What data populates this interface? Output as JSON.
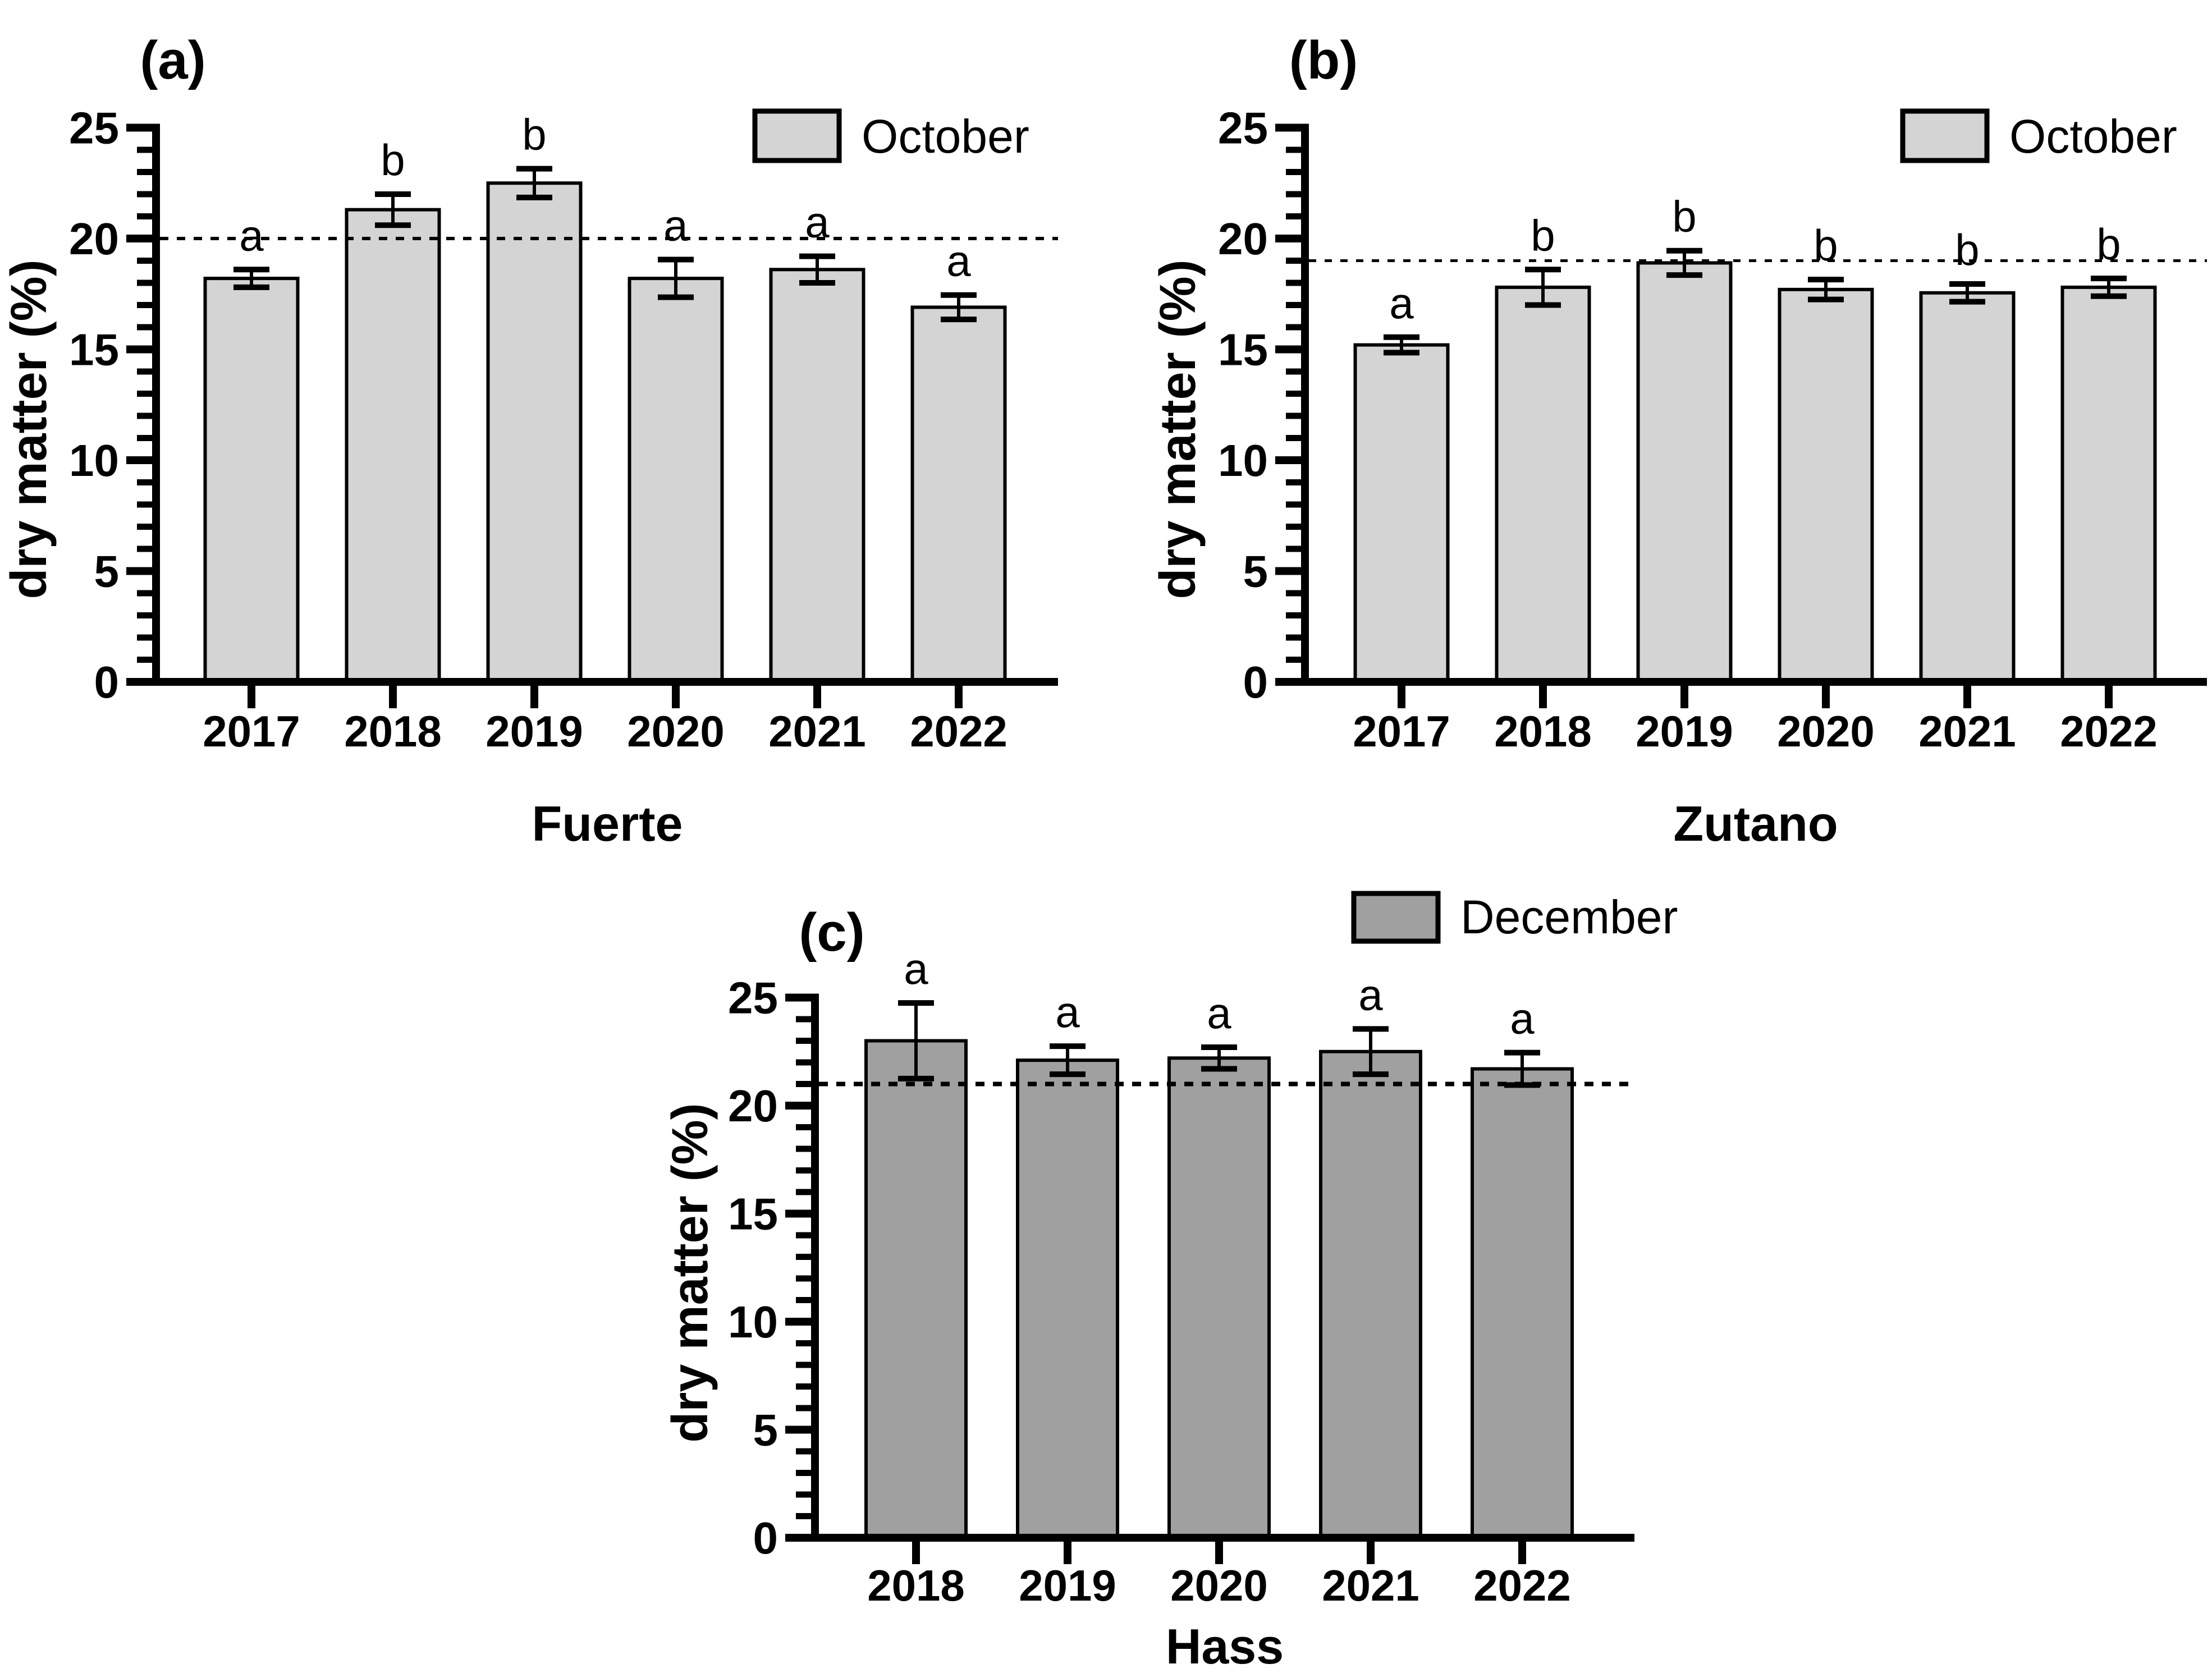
{
  "figure": {
    "background": "#ffffff",
    "axis_color": "#000000",
    "text_color": "#000000"
  },
  "colors": {
    "october_fill": "#d4d4d4",
    "december_fill": "#a0a0a0",
    "bar_stroke": "#000000",
    "dashed_line": "#000000"
  },
  "chart_data": [
    {
      "type": "bar",
      "panel_label": "(a)",
      "legend": {
        "label": "October",
        "fill": "#d4d4d4",
        "position": "top-right"
      },
      "title": "",
      "xlabel": "Fuerte",
      "ylabel": "dry matter (%)",
      "categories": [
        "2017",
        "2018",
        "2019",
        "2020",
        "2021",
        "2022"
      ],
      "values": [
        18.2,
        21.3,
        22.5,
        18.2,
        18.6,
        16.9
      ],
      "errors": [
        0.4,
        0.7,
        0.65,
        0.85,
        0.6,
        0.55
      ],
      "sig_letters": [
        "a",
        "b",
        "b",
        "a",
        "a",
        "a"
      ],
      "dashed_reference_line": 20,
      "ylim": [
        0,
        25
      ],
      "yticks": [
        0,
        5,
        10,
        15,
        20,
        25
      ],
      "minor_tick_step": 1,
      "grid": false
    },
    {
      "type": "bar",
      "panel_label": "(b)",
      "legend": {
        "label": "October",
        "fill": "#d4d4d4",
        "position": "top-right"
      },
      "title": "",
      "xlabel": "Zutano",
      "ylabel": "dry matter (%)",
      "categories": [
        "2017",
        "2018",
        "2019",
        "2020",
        "2021",
        "2022"
      ],
      "values": [
        15.2,
        17.8,
        18.9,
        17.7,
        17.55,
        17.8
      ],
      "errors": [
        0.35,
        0.8,
        0.55,
        0.45,
        0.4,
        0.4
      ],
      "sig_letters": [
        "a",
        "b",
        "b",
        "b",
        "b",
        "b"
      ],
      "dashed_reference_line": 19,
      "ylim": [
        0,
        25
      ],
      "yticks": [
        0,
        5,
        10,
        15,
        20,
        25
      ],
      "minor_tick_step": 1,
      "grid": false
    },
    {
      "type": "bar",
      "panel_label": "(c)",
      "legend": {
        "label": "December",
        "fill": "#a0a0a0",
        "position": "top-right"
      },
      "title": "",
      "xlabel": "Hass",
      "ylabel": "dry matter (%)",
      "categories": [
        "2018",
        "2019",
        "2020",
        "2021",
        "2022"
      ],
      "values": [
        23.0,
        22.1,
        22.2,
        22.5,
        21.7
      ],
      "errors": [
        1.75,
        0.65,
        0.5,
        1.05,
        0.75
      ],
      "sig_letters": [
        "a",
        "a",
        "a",
        "a",
        "a"
      ],
      "dashed_reference_line": 21,
      "ylim": [
        0,
        25
      ],
      "yticks": [
        0,
        5,
        10,
        15,
        20,
        25
      ],
      "minor_tick_step": 1,
      "grid": false
    }
  ]
}
